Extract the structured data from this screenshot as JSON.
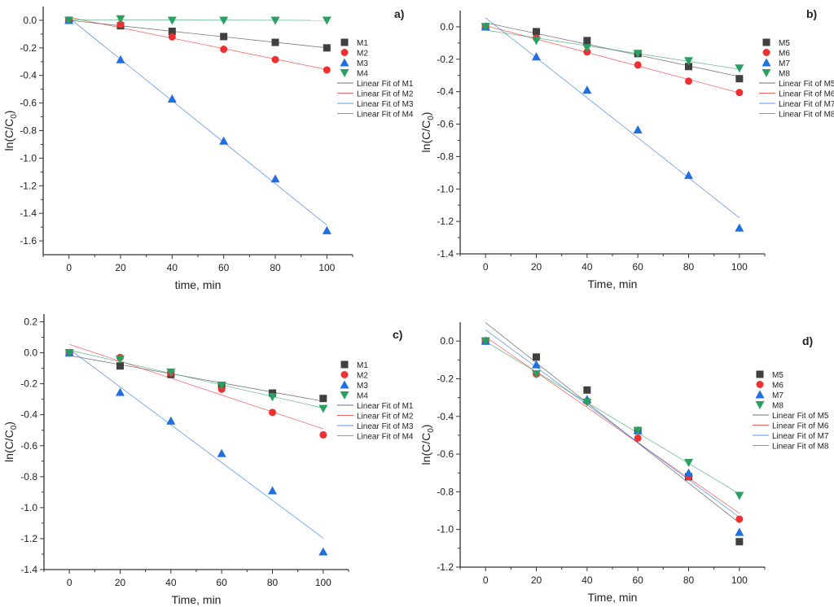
{
  "colors": {
    "M_sq": "#404040",
    "M_circle": "#f03030",
    "M_up": "#1f6fe0",
    "M_down": "#2aa060"
  },
  "chart_data": [
    {
      "type": "scatter",
      "panel_label": "a)",
      "xlabel": "time, min",
      "ylabel": "ln(C/C0)",
      "xlim": [
        -10,
        110
      ],
      "ylim": [
        -1.7,
        0.1
      ],
      "xticks": [
        0,
        20,
        40,
        60,
        80,
        100
      ],
      "yticks": [
        0.0,
        -0.2,
        -0.4,
        -0.6,
        -0.8,
        -1.0,
        -1.2,
        -1.4,
        -1.6
      ],
      "ytick_labels": [
        "0.0",
        "-0.2",
        "-0.4",
        "-0.6",
        "-0.8",
        "-1.0",
        "-1.2",
        "-1.4",
        "-1.6"
      ],
      "x": [
        0,
        20,
        40,
        60,
        80,
        100
      ],
      "series": [
        {
          "name": "M1",
          "marker": "square",
          "color": "#404040",
          "values": [
            0,
            -0.04,
            -0.08,
            -0.118,
            -0.16,
            -0.2
          ],
          "fit_name": "Linear Fit of M1"
        },
        {
          "name": "M2",
          "marker": "circle",
          "color": "#f03030",
          "values": [
            0,
            -0.03,
            -0.12,
            -0.21,
            -0.285,
            -0.36
          ],
          "fit_name": "Linear Fit of M2"
        },
        {
          "name": "M3",
          "marker": "triangle-up",
          "color": "#1f6fe0",
          "values": [
            0,
            -0.285,
            -0.57,
            -0.875,
            -1.15,
            -1.525
          ],
          "fit_name": "Linear Fit of M3"
        },
        {
          "name": "M4",
          "marker": "triangle-down",
          "color": "#2aa060",
          "values": [
            0,
            0.01,
            0,
            0,
            0,
            0
          ],
          "fit_name": "Linear Fit of M4"
        }
      ]
    },
    {
      "type": "scatter",
      "panel_label": "b)",
      "xlabel": "Time, min",
      "ylabel": "ln(C/C0)",
      "xlim": [
        -10,
        110
      ],
      "ylim": [
        -1.4,
        0.1
      ],
      "xticks": [
        0,
        20,
        40,
        60,
        80,
        100
      ],
      "yticks": [
        0.0,
        -0.2,
        -0.4,
        -0.6,
        -0.8,
        -1.0,
        -1.2,
        -1.4
      ],
      "ytick_labels": [
        "0.0",
        "-0.2",
        "-0.4",
        "-0.6",
        "-0.8",
        "-1.0",
        "-1.2",
        "-1.4"
      ],
      "x": [
        0,
        20,
        40,
        60,
        80,
        100
      ],
      "series": [
        {
          "name": "M5",
          "marker": "square",
          "color": "#404040",
          "values": [
            0,
            -0.03,
            -0.085,
            -0.165,
            -0.245,
            -0.32
          ],
          "fit_name": "Linear Fit of M5"
        },
        {
          "name": "M6",
          "marker": "circle",
          "color": "#f03030",
          "values": [
            0,
            -0.07,
            -0.155,
            -0.235,
            -0.335,
            -0.405
          ],
          "fit_name": "Linear Fit of M6"
        },
        {
          "name": "M7",
          "marker": "triangle-up",
          "color": "#1f6fe0",
          "values": [
            0,
            -0.185,
            -0.39,
            -0.635,
            -0.915,
            -1.24
          ],
          "fit_name": "Linear Fit of M7"
        },
        {
          "name": "M8",
          "marker": "triangle-down",
          "color": "#2aa060",
          "values": [
            0,
            -0.085,
            -0.13,
            -0.165,
            -0.21,
            -0.255
          ],
          "fit_name": "Linear Fit of M8"
        }
      ]
    },
    {
      "type": "scatter",
      "panel_label": "c)",
      "xlabel": "Time, min",
      "ylabel": "ln(C/C0)",
      "xlim": [
        -10,
        110
      ],
      "ylim": [
        -1.4,
        0.25
      ],
      "xticks": [
        0,
        20,
        40,
        60,
        80,
        100
      ],
      "yticks": [
        0.2,
        0.0,
        -0.2,
        -0.4,
        -0.6,
        -0.8,
        -1.0,
        -1.2,
        -1.4
      ],
      "ytick_labels": [
        "0.2",
        "0.0",
        "-0.2",
        "-0.4",
        "-0.6",
        "-0.8",
        "-1.0",
        "-1.2",
        "-1.4"
      ],
      "x": [
        0,
        20,
        40,
        60,
        80,
        100
      ],
      "series": [
        {
          "name": "M1",
          "marker": "square",
          "color": "#404040",
          "values": [
            0,
            -0.085,
            -0.14,
            -0.21,
            -0.26,
            -0.295
          ],
          "fit_name": "Linear Fit of M1"
        },
        {
          "name": "M2",
          "marker": "circle",
          "color": "#f03030",
          "values": [
            0,
            -0.03,
            -0.13,
            -0.235,
            -0.385,
            -0.53
          ],
          "fit_name": "Linear Fit of M2"
        },
        {
          "name": "M3",
          "marker": "triangle-up",
          "color": "#1f6fe0",
          "values": [
            0,
            -0.255,
            -0.44,
            -0.65,
            -0.89,
            -1.285
          ],
          "fit_name": "Linear Fit of M3"
        },
        {
          "name": "M4",
          "marker": "triangle-down",
          "color": "#2aa060",
          "values": [
            0,
            -0.04,
            -0.125,
            -0.21,
            -0.285,
            -0.36
          ],
          "fit_name": "Linear Fit of M4"
        }
      ]
    },
    {
      "type": "scatter",
      "panel_label": "d)",
      "xlabel": "Time, min",
      "ylabel": "ln(C/C0)",
      "xlim": [
        -10,
        110
      ],
      "ylim": [
        -1.2,
        0.1
      ],
      "xticks": [
        0,
        20,
        40,
        60,
        80,
        100
      ],
      "yticks": [
        0.0,
        -0.2,
        -0.4,
        -0.6,
        -0.8,
        -1.0,
        -1.2
      ],
      "ytick_labels": [
        "0.0",
        "-0.2",
        "-0.4",
        "-0.6",
        "-0.8",
        "-1.0",
        "-1.2"
      ],
      "x": [
        0,
        20,
        40,
        60,
        80,
        100
      ],
      "series": [
        {
          "name": "M5",
          "marker": "square",
          "color": "#404040",
          "values": [
            0,
            -0.085,
            -0.26,
            -0.475,
            -0.72,
            -1.065
          ],
          "fit_name": "Linear Fit of M5"
        },
        {
          "name": "M6",
          "marker": "circle",
          "color": "#f03030",
          "values": [
            0,
            -0.175,
            -0.32,
            -0.515,
            -0.72,
            -0.945
          ],
          "fit_name": "Linear Fit of M6"
        },
        {
          "name": "M7",
          "marker": "triangle-up",
          "color": "#1f6fe0",
          "values": [
            0,
            -0.125,
            -0.31,
            -0.475,
            -0.7,
            -1.015
          ],
          "fit_name": "Linear Fit of M7"
        },
        {
          "name": "M8",
          "marker": "triangle-down",
          "color": "#2aa060",
          "values": [
            0,
            -0.175,
            -0.325,
            -0.475,
            -0.645,
            -0.82
          ],
          "fit_name": "Linear Fit of M8"
        }
      ]
    }
  ]
}
